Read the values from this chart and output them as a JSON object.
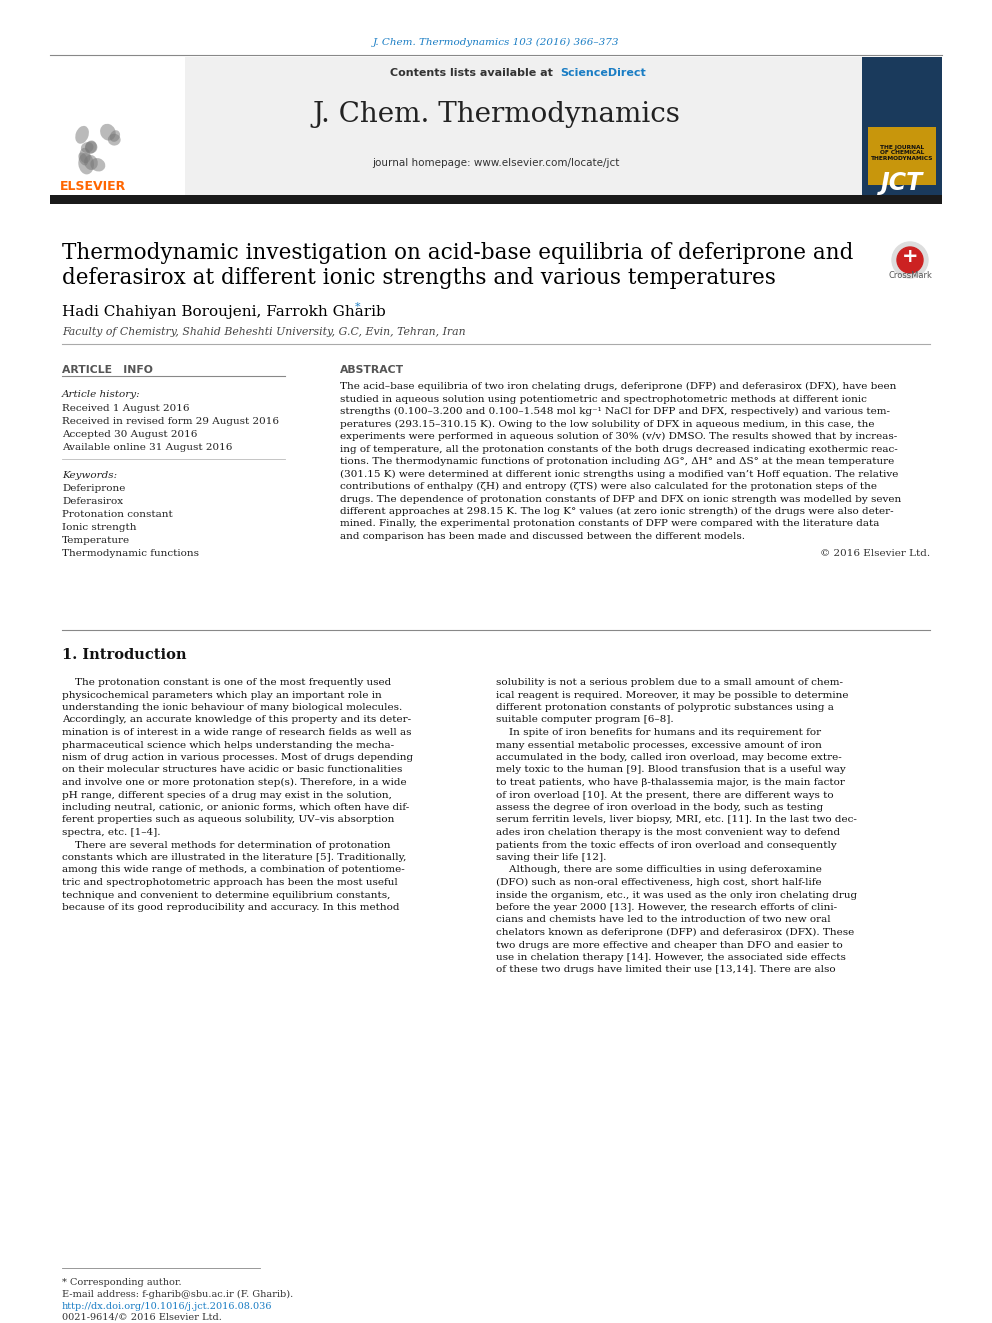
{
  "journal_ref": "J. Chem. Thermodynamics 103 (2016) 366–373",
  "contents_text": "Contents lists available at",
  "sciencedirect_text": "ScienceDirect",
  "journal_name": "J. Chem. Thermodynamics",
  "homepage_text": "journal homepage: www.elsevier.com/locate/jct",
  "title_line1": "Thermodynamic investigation on acid-base equilibria of deferiprone and",
  "title_line2": "deferasirox at different ionic strengths and various temperatures",
  "authors": "Hadi Chahiyan Boroujeni, Farrokh Gharib",
  "affiliation": "Faculty of Chemistry, Shahid Beheshti University, G.C, Evin, Tehran, Iran",
  "article_info_title": "ARTICLE   INFO",
  "abstract_title": "ABSTRACT",
  "article_history_label": "Article history:",
  "history_lines": [
    "Received 1 August 2016",
    "Received in revised form 29 August 2016",
    "Accepted 30 August 2016",
    "Available online 31 August 2016"
  ],
  "keywords_label": "Keywords:",
  "keywords": [
    "Deferiprone",
    "Deferasirox",
    "Protonation constant",
    "Ionic strength",
    "Temperature",
    "Thermodynamic functions"
  ],
  "abstract_lines": [
    "The acid–base equilibria of two iron chelating drugs, deferiprone (DFP) and deferasirox (DFX), have been",
    "studied in aqueous solution using potentiometric and spectrophotometric methods at different ionic",
    "strengths (0.100–3.200 and 0.100–1.548 mol kg⁻¹ NaCl for DFP and DFX, respectively) and various tem-",
    "peratures (293.15–310.15 K). Owing to the low solubility of DFX in aqueous medium, in this case, the",
    "experiments were performed in aqueous solution of 30% (v/v) DMSO. The results showed that by increas-",
    "ing of temperature, all the protonation constants of the both drugs decreased indicating exothermic reac-",
    "tions. The thermodynamic functions of protonation including ΔG°, ΔH° and ΔS° at the mean temperature",
    "(301.15 K) were determined at different ionic strengths using a modified van’t Hoff equation. The relative",
    "contributions of enthalpy (ζH) and entropy (ζTS) were also calculated for the protonation steps of the",
    "drugs. The dependence of protonation constants of DFP and DFX on ionic strength was modelled by seven",
    "different approaches at 298.15 K. The log K° values (at zero ionic strength) of the drugs were also deter-",
    "mined. Finally, the experimental protonation constants of DFP were compared with the literature data",
    "and comparison has been made and discussed between the different models."
  ],
  "copyright_text": "© 2016 Elsevier Ltd.",
  "section1_title": "1. Introduction",
  "col1_lines": [
    "    The protonation constant is one of the most frequently used",
    "physicochemical parameters which play an important role in",
    "understanding the ionic behaviour of many biological molecules.",
    "Accordingly, an accurate knowledge of this property and its deter-",
    "mination is of interest in a wide range of research fields as well as",
    "pharmaceutical science which helps understanding the mecha-",
    "nism of drug action in various processes. Most of drugs depending",
    "on their molecular structures have acidic or basic functionalities",
    "and involve one or more protonation step(s). Therefore, in a wide",
    "pH range, different species of a drug may exist in the solution,",
    "including neutral, cationic, or anionic forms, which often have dif-",
    "ferent properties such as aqueous solubility, UV–vis absorption",
    "spectra, etc. [1–4].",
    "    There are several methods for determination of protonation",
    "constants which are illustrated in the literature [5]. Traditionally,",
    "among this wide range of methods, a combination of potentiome-",
    "tric and spectrophotometric approach has been the most useful",
    "technique and convenient to determine equilibrium constants,",
    "because of its good reproducibility and accuracy. In this method"
  ],
  "col2_lines": [
    "solubility is not a serious problem due to a small amount of chem-",
    "ical reagent is required. Moreover, it may be possible to determine",
    "different protonation constants of polyprotic substances using a",
    "suitable computer program [6–8].",
    "    In spite of iron benefits for humans and its requirement for",
    "many essential metabolic processes, excessive amount of iron",
    "accumulated in the body, called iron overload, may become extre-",
    "mely toxic to the human [9]. Blood transfusion that is a useful way",
    "to treat patients, who have β-thalassemia major, is the main factor",
    "of iron overload [10]. At the present, there are different ways to",
    "assess the degree of iron overload in the body, such as testing",
    "serum ferritin levels, liver biopsy, MRI, etc. [11]. In the last two dec-",
    "ades iron chelation therapy is the most convenient way to defend",
    "patients from the toxic effects of iron overload and consequently",
    "saving their life [12].",
    "    Although, there are some difficulties in using deferoxamine",
    "(DFO) such as non-oral effectiveness, high cost, short half-life",
    "inside the organism, etc., it was used as the only iron chelating drug",
    "before the year 2000 [13]. However, the research efforts of clini-",
    "cians and chemists have led to the introduction of two new oral",
    "chelators known as deferiprone (DFP) and deferasirox (DFX). These",
    "two drugs are more effective and cheaper than DFO and easier to",
    "use in chelation therapy [14]. However, the associated side effects",
    "of these two drugs have limited their use [13,14]. There are also"
  ],
  "footnote_author": "* Corresponding author.",
  "footnote_email": "E-mail address: f-gharib@sbu.ac.ir (F. Gharib).",
  "footnote_doi": "http://dx.doi.org/10.1016/j.jct.2016.08.036",
  "footnote_issn": "0021-9614/© 2016 Elsevier Ltd.",
  "header_bg_color": "#f0f0f0",
  "elsevier_color": "#FF6600",
  "sciencedirect_color": "#1A7DC4",
  "journal_ref_color": "#1A7DC4",
  "link_color": "#1A7DC4",
  "title_color": "#000000",
  "body_bg": "#ffffff",
  "black_bar_color": "#1a1a1a"
}
